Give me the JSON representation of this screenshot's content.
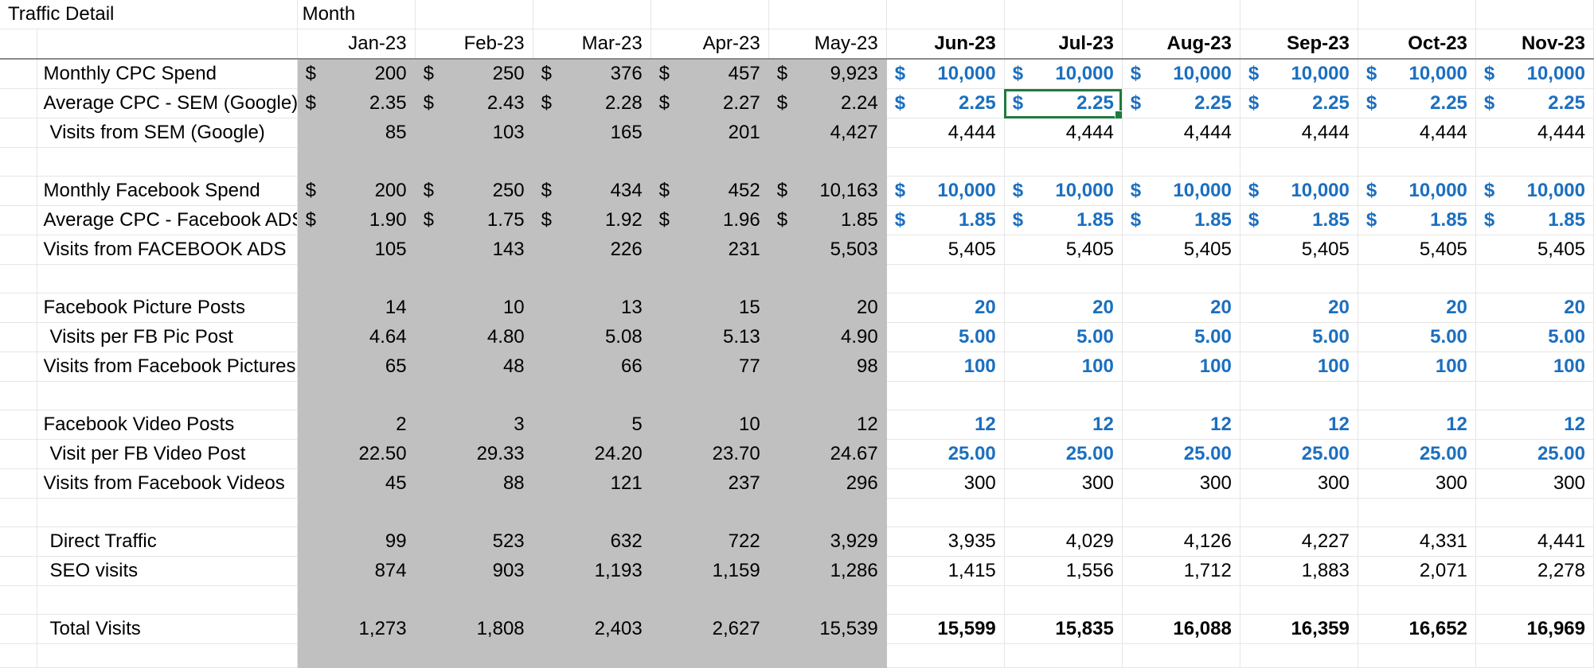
{
  "header": {
    "title": "Traffic Detail",
    "month_label": "Month",
    "months": [
      "Jan-23",
      "Feb-23",
      "Mar-23",
      "Apr-23",
      "May-23",
      "Jun-23",
      "Jul-23",
      "Aug-23",
      "Sep-23",
      "Oct-23",
      "Nov-23"
    ],
    "historical_count": 5
  },
  "colors": {
    "historical_fill": "#c0c0c0",
    "input_blue": "#1b6fbf",
    "selection_green": "#1f7a3d"
  },
  "selected_cell": {
    "row": "Average CPC - SEM (Google)",
    "month": "Jul-23"
  },
  "currency_symbol": "$",
  "rows": [
    {
      "label": "Monthly CPC Spend",
      "indent": false,
      "currency": true,
      "style": "input",
      "values": [
        "200",
        "250",
        "376",
        "457",
        "9,923",
        "10,000",
        "10,000",
        "10,000",
        "10,000",
        "10,000",
        "10,000"
      ]
    },
    {
      "label": "Average CPC - SEM (Google)",
      "indent": false,
      "currency": true,
      "style": "input",
      "values": [
        "2.35",
        "2.43",
        "2.28",
        "2.27",
        "2.24",
        "2.25",
        "2.25",
        "2.25",
        "2.25",
        "2.25",
        "2.25"
      ]
    },
    {
      "label": "Visits from SEM (Google)",
      "indent": true,
      "currency": false,
      "style": "normal",
      "values": [
        "85",
        "103",
        "165",
        "201",
        "4,427",
        "4,444",
        "4,444",
        "4,444",
        "4,444",
        "4,444",
        "4,444"
      ]
    },
    {
      "blank": true
    },
    {
      "label": "Monthly Facebook Spend",
      "indent": false,
      "currency": true,
      "style": "input",
      "values": [
        "200",
        "250",
        "434",
        "452",
        "10,163",
        "10,000",
        "10,000",
        "10,000",
        "10,000",
        "10,000",
        "10,000"
      ]
    },
    {
      "label": "Average CPC - Facebook ADS",
      "indent": false,
      "currency": true,
      "style": "input",
      "values": [
        "1.90",
        "1.75",
        "1.92",
        "1.96",
        "1.85",
        "1.85",
        "1.85",
        "1.85",
        "1.85",
        "1.85",
        "1.85"
      ]
    },
    {
      "label": "Visits from FACEBOOK ADS",
      "indent": false,
      "currency": false,
      "style": "normal",
      "values": [
        "105",
        "143",
        "226",
        "231",
        "5,503",
        "5,405",
        "5,405",
        "5,405",
        "5,405",
        "5,405",
        "5,405"
      ]
    },
    {
      "blank": true
    },
    {
      "label": "Facebook Picture Posts",
      "indent": false,
      "currency": false,
      "style": "input",
      "values": [
        "14",
        "10",
        "13",
        "15",
        "20",
        "20",
        "20",
        "20",
        "20",
        "20",
        "20"
      ]
    },
    {
      "label": "Visits per FB Pic Post",
      "indent": true,
      "currency": false,
      "style": "input",
      "values": [
        "4.64",
        "4.80",
        "5.08",
        "5.13",
        "4.90",
        "5.00",
        "5.00",
        "5.00",
        "5.00",
        "5.00",
        "5.00"
      ]
    },
    {
      "label": "Visits from Facebook Pictures",
      "indent": false,
      "currency": false,
      "style": "input",
      "values": [
        "65",
        "48",
        "66",
        "77",
        "98",
        "100",
        "100",
        "100",
        "100",
        "100",
        "100"
      ]
    },
    {
      "blank": true
    },
    {
      "label": "Facebook Video Posts",
      "indent": false,
      "currency": false,
      "style": "input",
      "values": [
        "2",
        "3",
        "5",
        "10",
        "12",
        "12",
        "12",
        "12",
        "12",
        "12",
        "12"
      ]
    },
    {
      "label": "Visit per FB Video Post",
      "indent": true,
      "currency": false,
      "style": "input",
      "values": [
        "22.50",
        "29.33",
        "24.20",
        "23.70",
        "24.67",
        "25.00",
        "25.00",
        "25.00",
        "25.00",
        "25.00",
        "25.00"
      ]
    },
    {
      "label": "Visits from Facebook Videos",
      "indent": false,
      "currency": false,
      "style": "normal",
      "values": [
        "45",
        "88",
        "121",
        "237",
        "296",
        "300",
        "300",
        "300",
        "300",
        "300",
        "300"
      ]
    },
    {
      "blank": true
    },
    {
      "label": "Direct Traffic",
      "indent": true,
      "currency": false,
      "style": "normal",
      "values": [
        "99",
        "523",
        "632",
        "722",
        "3,929",
        "3,935",
        "4,029",
        "4,126",
        "4,227",
        "4,331",
        "4,441"
      ]
    },
    {
      "label": "SEO visits",
      "indent": true,
      "currency": false,
      "style": "normal",
      "values": [
        "874",
        "903",
        "1,193",
        "1,159",
        "1,286",
        "1,415",
        "1,556",
        "1,712",
        "1,883",
        "2,071",
        "2,278"
      ]
    },
    {
      "blank": true
    },
    {
      "label": "Total Visits",
      "indent": true,
      "currency": false,
      "style": "bold",
      "values": [
        "1,273",
        "1,808",
        "2,403",
        "2,627",
        "15,539",
        "15,599",
        "15,835",
        "16,088",
        "16,359",
        "16,652",
        "16,969"
      ]
    },
    {
      "blank": true
    }
  ]
}
